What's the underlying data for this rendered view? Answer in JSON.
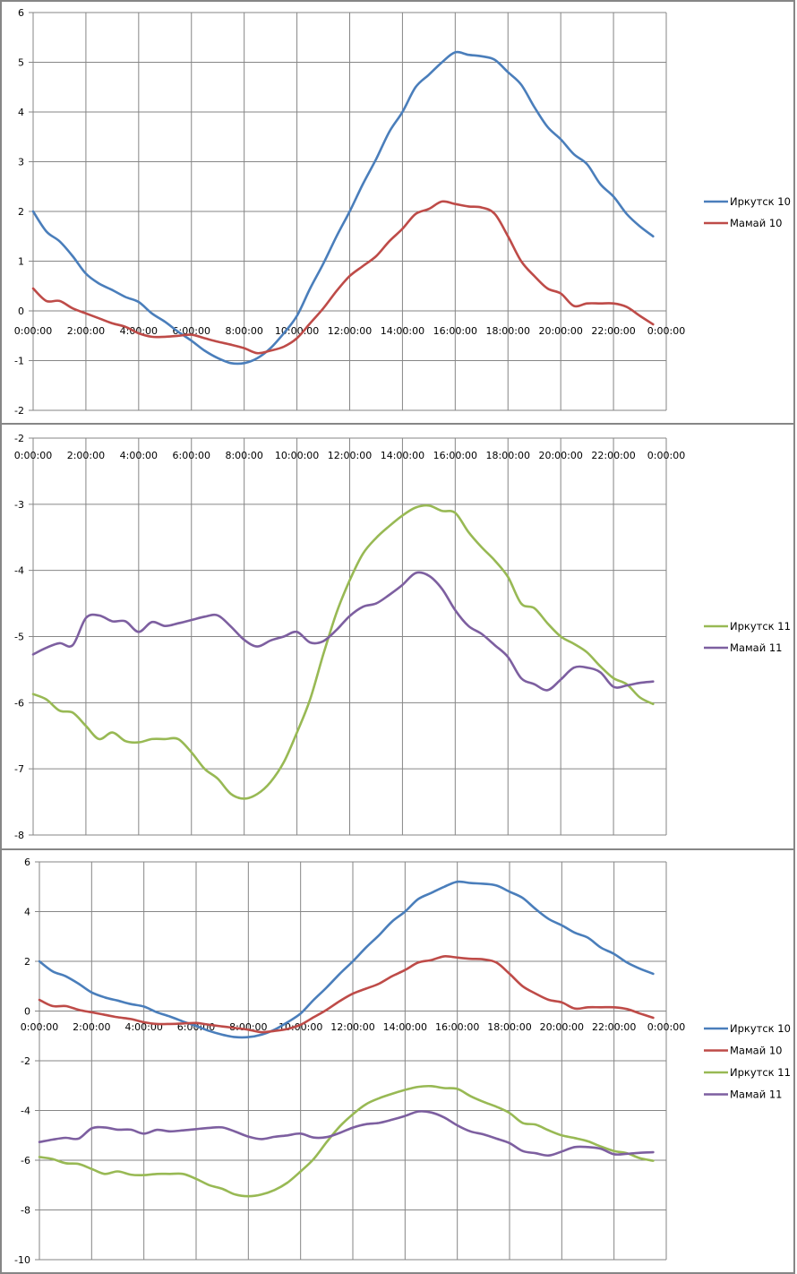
{
  "chart_data": [
    {
      "type": "line",
      "title": "",
      "xlabel": "",
      "ylabel": "",
      "ylim": [
        -2,
        6
      ],
      "yticks": [
        "6",
        "5",
        "4",
        "3",
        "2",
        "1",
        "0",
        "-1",
        "-2"
      ],
      "ytick_values": [
        6,
        5,
        4,
        3,
        2,
        1,
        0,
        -1,
        -2
      ],
      "xtick_labels": [
        "0:00:00",
        "2:00:00",
        "4:00:00",
        "6:00:00",
        "8:00:00",
        "10:00:00",
        "12:00:00",
        "14:00:00",
        "16:00:00",
        "18:00:00",
        "20:00:00",
        "22:00:00",
        "0:00:00"
      ],
      "x_unit": "hours (every 30 min)",
      "grid": true,
      "legend": "right",
      "series": [
        {
          "name": "Иркутск 10",
          "color": "#4a7ebb",
          "values": [
            2.0,
            1.6,
            1.4,
            1.1,
            0.75,
            0.55,
            0.42,
            0.28,
            0.18,
            -0.05,
            -0.22,
            -0.42,
            -0.6,
            -0.8,
            -0.95,
            -1.05,
            -1.05,
            -0.95,
            -0.75,
            -0.45,
            -0.1,
            0.45,
            0.95,
            1.5,
            2.0,
            2.55,
            3.05,
            3.6,
            4.0,
            4.5,
            4.75,
            5.0,
            5.2,
            5.15,
            5.12,
            5.05,
            4.8,
            4.55,
            4.1,
            3.7,
            3.45,
            3.15,
            2.95,
            2.55,
            2.3,
            1.95,
            1.7,
            1.5
          ]
        },
        {
          "name": "Мамай 10",
          "color": "#be4b48",
          "values": [
            0.45,
            0.2,
            0.2,
            0.05,
            -0.05,
            -0.15,
            -0.25,
            -0.32,
            -0.45,
            -0.52,
            -0.52,
            -0.5,
            -0.48,
            -0.55,
            -0.62,
            -0.68,
            -0.75,
            -0.85,
            -0.8,
            -0.72,
            -0.55,
            -0.25,
            0.05,
            0.4,
            0.7,
            0.9,
            1.1,
            1.4,
            1.65,
            1.95,
            2.05,
            2.2,
            2.15,
            2.1,
            2.08,
            1.95,
            1.5,
            1.0,
            0.7,
            0.45,
            0.35,
            0.1,
            0.15,
            0.15,
            0.15,
            0.08,
            -0.1,
            -0.27
          ]
        }
      ]
    },
    {
      "type": "line",
      "title": "",
      "xlabel": "",
      "ylabel": "",
      "ylim": [
        -8,
        -2
      ],
      "yticks": [
        "-2",
        "-3",
        "-4",
        "-5",
        "-6",
        "-7",
        "-8"
      ],
      "ytick_values": [
        -2,
        -3,
        -4,
        -5,
        -6,
        -7,
        -8
      ],
      "xtick_labels": [
        "0:00:00",
        "2:00:00",
        "4:00:00",
        "6:00:00",
        "8:00:00",
        "10:00:00",
        "12:00:00",
        "14:00:00",
        "16:00:00",
        "18:00:00",
        "20:00:00",
        "22:00:00",
        "0:00:00"
      ],
      "x_unit": "hours (every 30 min)",
      "grid": true,
      "legend": "right",
      "series": [
        {
          "name": "Иркутск 11",
          "color": "#98b954",
          "values": [
            -5.87,
            -5.95,
            -6.12,
            -6.15,
            -6.35,
            -6.55,
            -6.45,
            -6.58,
            -6.6,
            -6.55,
            -6.55,
            -6.55,
            -6.75,
            -7.0,
            -7.15,
            -7.38,
            -7.45,
            -7.38,
            -7.2,
            -6.9,
            -6.45,
            -5.95,
            -5.27,
            -4.64,
            -4.15,
            -3.75,
            -3.51,
            -3.33,
            -3.17,
            -3.05,
            -3.02,
            -3.1,
            -3.13,
            -3.42,
            -3.65,
            -3.85,
            -4.1,
            -4.5,
            -4.57,
            -4.8,
            -5.0,
            -5.11,
            -5.24,
            -5.45,
            -5.63,
            -5.72,
            -5.92,
            -6.02
          ]
        },
        {
          "name": "Мамай 11",
          "color": "#7d5fa0",
          "values": [
            -5.27,
            -5.17,
            -5.1,
            -5.13,
            -4.72,
            -4.68,
            -4.77,
            -4.77,
            -4.93,
            -4.78,
            -4.84,
            -4.8,
            -4.75,
            -4.7,
            -4.68,
            -4.85,
            -5.05,
            -5.15,
            -5.06,
            -5.0,
            -4.93,
            -5.09,
            -5.07,
            -4.9,
            -4.69,
            -4.55,
            -4.5,
            -4.37,
            -4.22,
            -4.04,
            -4.08,
            -4.28,
            -4.6,
            -4.84,
            -4.96,
            -5.13,
            -5.31,
            -5.63,
            -5.72,
            -5.81,
            -5.65,
            -5.47,
            -5.47,
            -5.54,
            -5.76,
            -5.74,
            -5.7,
            -5.68
          ]
        }
      ]
    },
    {
      "type": "line",
      "title": "",
      "xlabel": "",
      "ylabel": "",
      "ylim": [
        -10,
        6
      ],
      "yticks": [
        "6",
        "4",
        "2",
        "0",
        "-2",
        "-4",
        "-6",
        "-8",
        "-10"
      ],
      "ytick_values": [
        6,
        4,
        2,
        0,
        -2,
        -4,
        -6,
        -8,
        -10
      ],
      "xtick_labels": [
        "0:00:00",
        "2:00:00",
        "4:00:00",
        "6:00:00",
        "8:00:00",
        "10:00:00",
        "12:00:00",
        "14:00:00",
        "16:00:00",
        "18:00:00",
        "20:00:00",
        "22:00:00",
        "0:00:00"
      ],
      "x_unit": "hours (every 30 min)",
      "grid": true,
      "legend": "right",
      "series": [
        {
          "name": "Иркутск 10",
          "color": "#4a7ebb",
          "values": [
            2.0,
            1.6,
            1.4,
            1.1,
            0.75,
            0.55,
            0.42,
            0.28,
            0.18,
            -0.05,
            -0.22,
            -0.42,
            -0.6,
            -0.8,
            -0.95,
            -1.05,
            -1.05,
            -0.95,
            -0.75,
            -0.45,
            -0.1,
            0.45,
            0.95,
            1.5,
            2.0,
            2.55,
            3.05,
            3.6,
            4.0,
            4.5,
            4.75,
            5.0,
            5.2,
            5.15,
            5.12,
            5.05,
            4.8,
            4.55,
            4.1,
            3.7,
            3.45,
            3.15,
            2.95,
            2.55,
            2.3,
            1.95,
            1.7,
            1.5
          ]
        },
        {
          "name": "Мамай 10",
          "color": "#be4b48",
          "values": [
            0.45,
            0.2,
            0.2,
            0.05,
            -0.05,
            -0.15,
            -0.25,
            -0.32,
            -0.45,
            -0.52,
            -0.52,
            -0.5,
            -0.48,
            -0.55,
            -0.62,
            -0.68,
            -0.75,
            -0.85,
            -0.8,
            -0.72,
            -0.55,
            -0.25,
            0.05,
            0.4,
            0.7,
            0.9,
            1.1,
            1.4,
            1.65,
            1.95,
            2.05,
            2.2,
            2.15,
            2.1,
            2.08,
            1.95,
            1.5,
            1.0,
            0.7,
            0.45,
            0.35,
            0.1,
            0.15,
            0.15,
            0.15,
            0.08,
            -0.1,
            -0.27
          ]
        },
        {
          "name": "Иркутск 11",
          "color": "#98b954",
          "values": [
            -5.87,
            -5.95,
            -6.12,
            -6.15,
            -6.35,
            -6.55,
            -6.45,
            -6.58,
            -6.6,
            -6.55,
            -6.55,
            -6.55,
            -6.75,
            -7.0,
            -7.15,
            -7.38,
            -7.45,
            -7.38,
            -7.2,
            -6.9,
            -6.45,
            -5.95,
            -5.27,
            -4.64,
            -4.15,
            -3.75,
            -3.51,
            -3.33,
            -3.17,
            -3.05,
            -3.02,
            -3.1,
            -3.13,
            -3.42,
            -3.65,
            -3.85,
            -4.1,
            -4.5,
            -4.57,
            -4.8,
            -5.0,
            -5.11,
            -5.24,
            -5.45,
            -5.63,
            -5.72,
            -5.92,
            -6.02
          ]
        },
        {
          "name": "Мамай 11",
          "color": "#7d5fa0",
          "values": [
            -5.27,
            -5.17,
            -5.1,
            -5.13,
            -4.72,
            -4.68,
            -4.77,
            -4.77,
            -4.93,
            -4.78,
            -4.84,
            -4.8,
            -4.75,
            -4.7,
            -4.68,
            -4.85,
            -5.05,
            -5.15,
            -5.06,
            -5.0,
            -4.93,
            -5.09,
            -5.07,
            -4.9,
            -4.69,
            -4.55,
            -4.5,
            -4.37,
            -4.22,
            -4.04,
            -4.08,
            -4.28,
            -4.6,
            -4.84,
            -4.96,
            -5.13,
            -5.31,
            -5.63,
            -5.72,
            -5.81,
            -5.65,
            -5.47,
            -5.47,
            -5.54,
            -5.76,
            -5.74,
            -5.7,
            -5.68
          ]
        }
      ]
    }
  ]
}
